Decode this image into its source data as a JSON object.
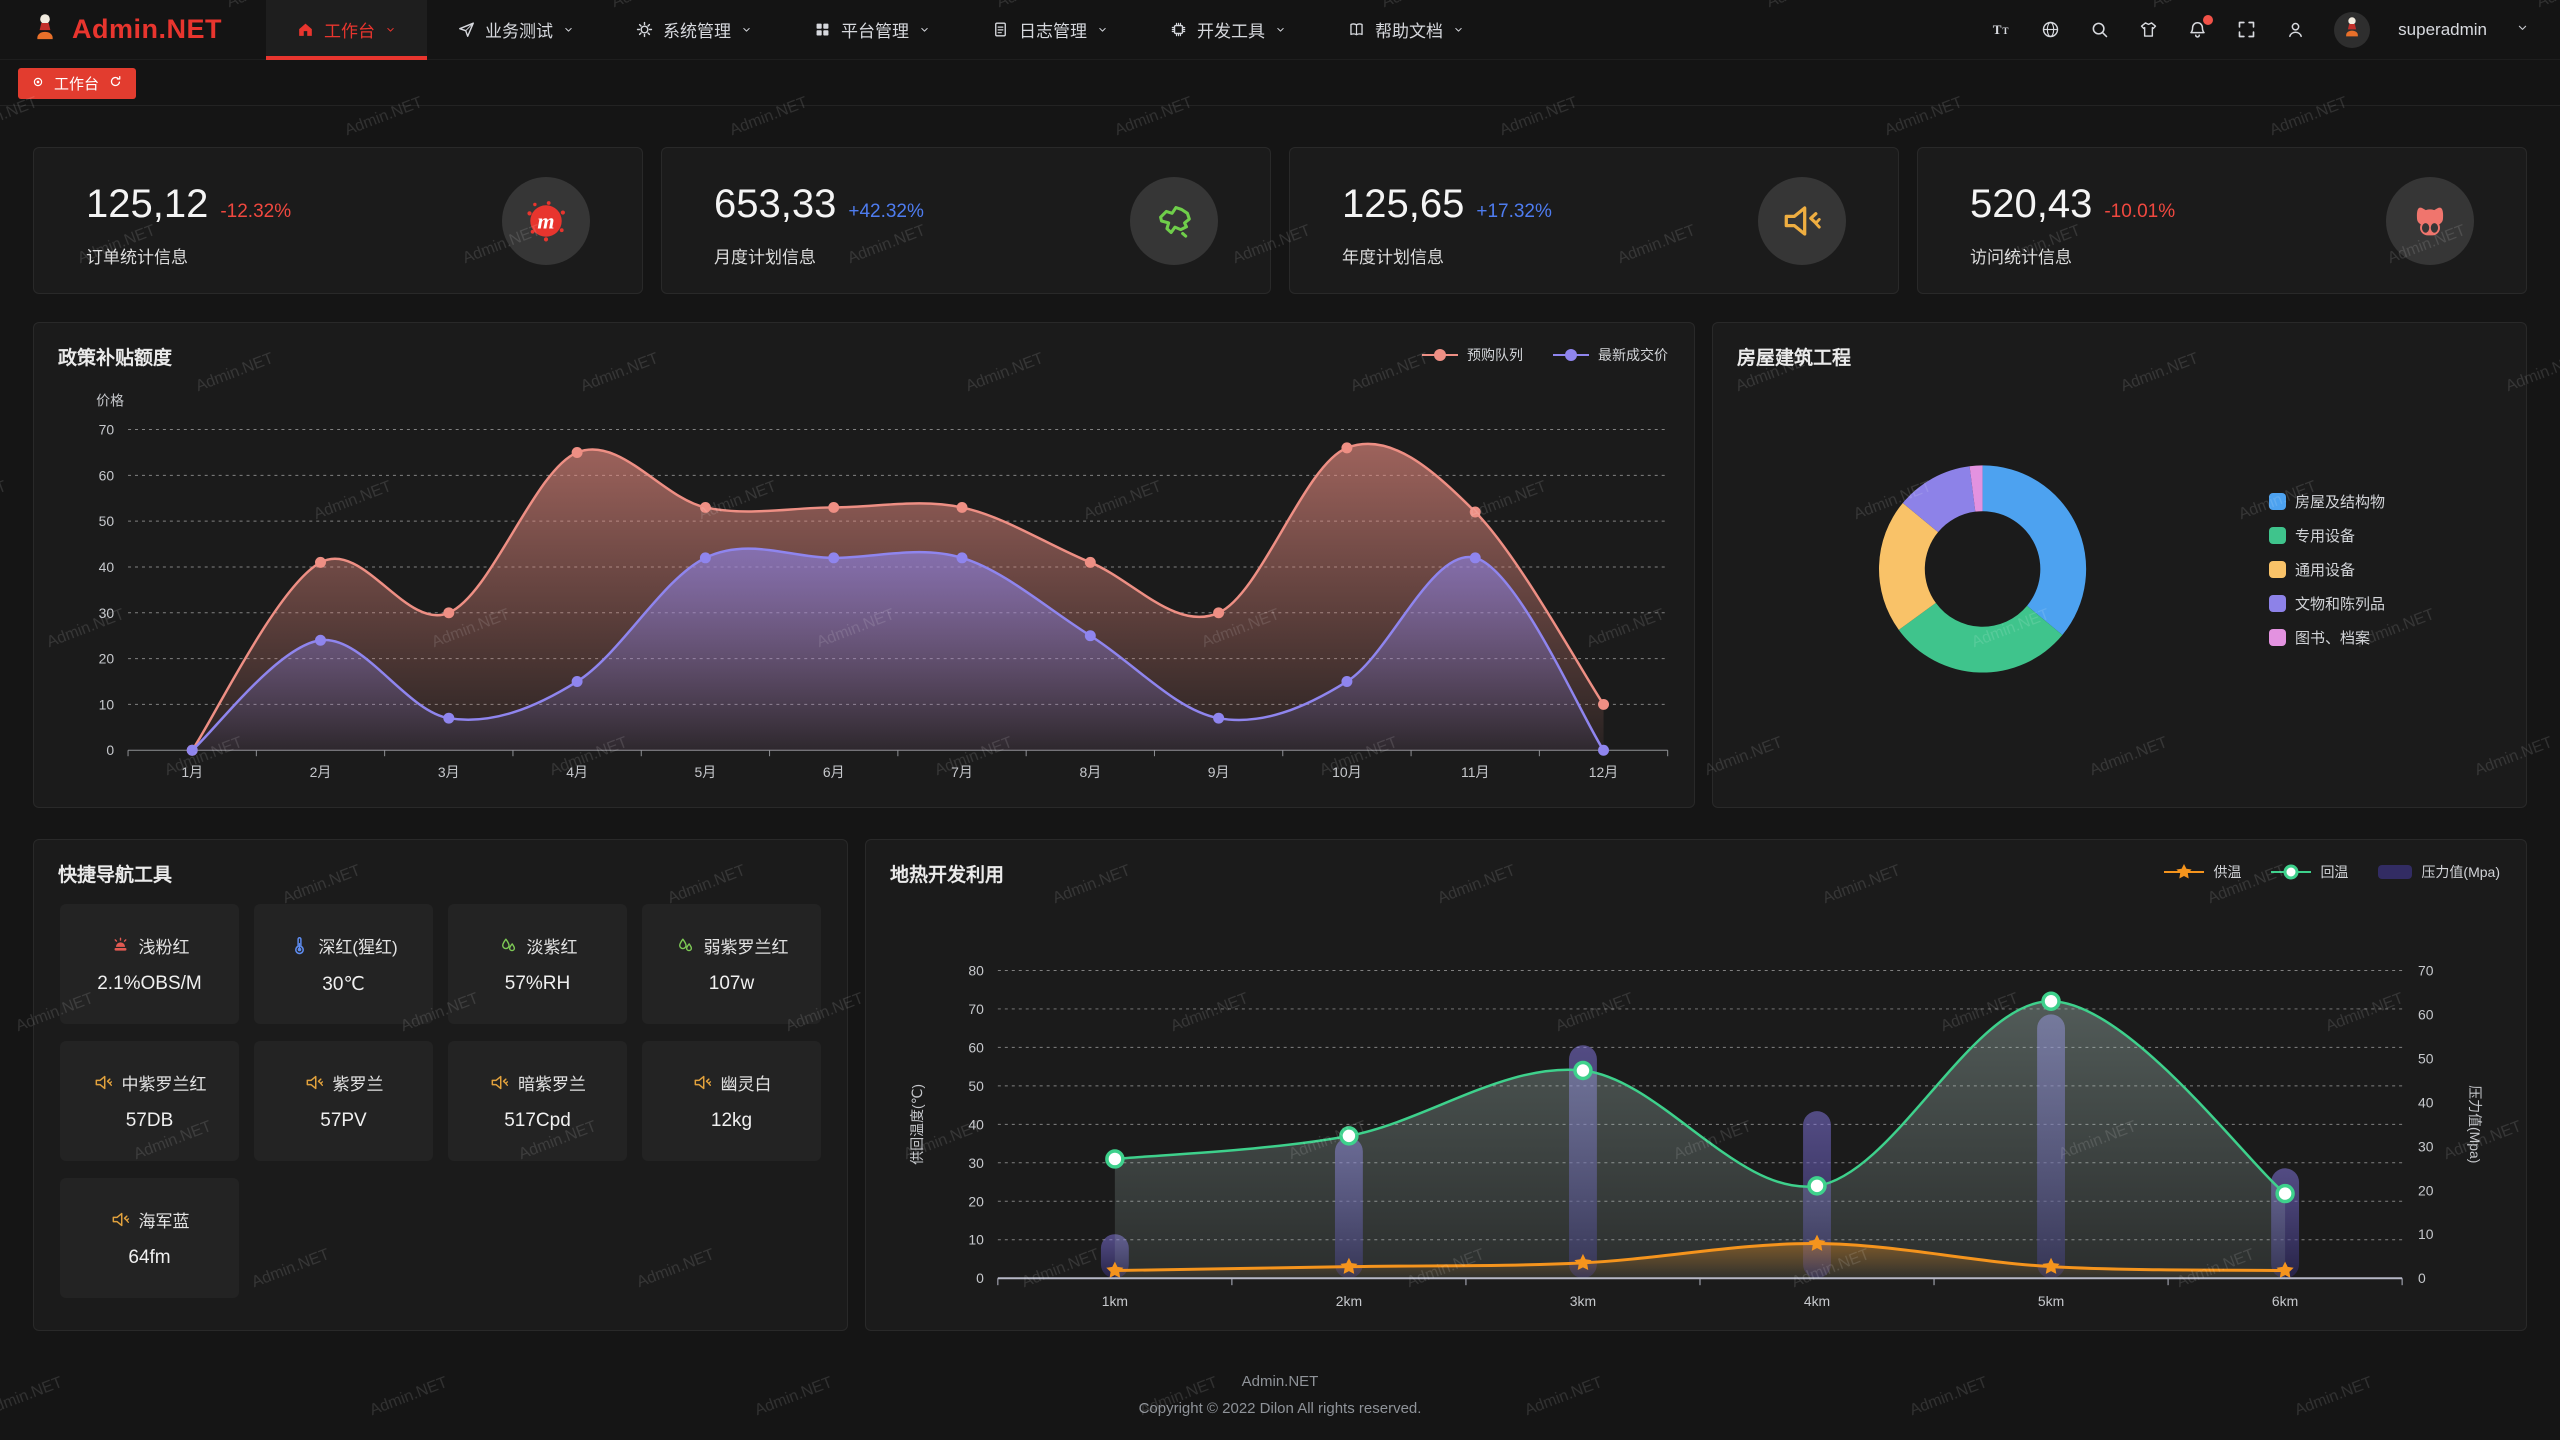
{
  "header": {
    "logo_text": "Admin.NET",
    "menu": [
      {
        "id": "workbench",
        "label": "工作台",
        "icon": "home",
        "active": true
      },
      {
        "id": "business-test",
        "label": "业务测试",
        "icon": "send",
        "active": false
      },
      {
        "id": "system-manage",
        "label": "系统管理",
        "icon": "gear",
        "active": false
      },
      {
        "id": "platform-manage",
        "label": "平台管理",
        "icon": "grid",
        "active": false
      },
      {
        "id": "log-manage",
        "label": "日志管理",
        "icon": "file",
        "active": false
      },
      {
        "id": "dev-tools",
        "label": "开发工具",
        "icon": "chip",
        "active": false
      },
      {
        "id": "help-docs",
        "label": "帮助文档",
        "icon": "book",
        "active": false
      }
    ],
    "toolbar": [
      {
        "id": "font-size",
        "icon": "font-size",
        "badge": false
      },
      {
        "id": "language",
        "icon": "language",
        "badge": false
      },
      {
        "id": "search",
        "icon": "search",
        "badge": false
      },
      {
        "id": "theme",
        "icon": "theme",
        "badge": false
      },
      {
        "id": "notifications",
        "icon": "bell",
        "badge": true
      },
      {
        "id": "fullscreen",
        "icon": "fullscreen",
        "badge": false
      },
      {
        "id": "profile",
        "icon": "user",
        "badge": false
      }
    ],
    "username": "superadmin"
  },
  "tabbar": {
    "active_tab": "工作台"
  },
  "cards": [
    {
      "value": "125,12",
      "delta": "-12.32%",
      "trend": "down",
      "label": "订单统计信息",
      "icon": "medium",
      "icon_color": "#e8352e"
    },
    {
      "value": "653,33",
      "delta": "+42.32%",
      "trend": "up",
      "label": "月度计划信息",
      "icon": "china-map",
      "icon_color": "#6fce4a"
    },
    {
      "value": "125,65",
      "delta": "+17.32%",
      "trend": "up",
      "label": "年度计划信息",
      "icon": "voice",
      "icon_color": "#efae41"
    },
    {
      "value": "520,43",
      "delta": "-10.01%",
      "trend": "down",
      "label": "访问统计信息",
      "icon": "octocat",
      "icon_color": "#f0756d"
    }
  ],
  "quick_nav": {
    "title": "快捷导航工具",
    "buttons": [
      {
        "name": "浅粉红",
        "value": "2.1%OBS/M",
        "icon": "alarm",
        "icon_color": "#e25a52"
      },
      {
        "name": "深红(猩红)",
        "value": "30℃",
        "icon": "thermometer",
        "icon_color": "#5e8cf0"
      },
      {
        "name": "淡紫红",
        "value": "57%RH",
        "icon": "humidity",
        "icon_color": "#7dc855"
      },
      {
        "name": "弱紫罗兰红",
        "value": "107w",
        "icon": "humidity",
        "icon_color": "#7dc855"
      },
      {
        "name": "中紫罗兰红",
        "value": "57DB",
        "icon": "voice",
        "icon_color": "#e2a23d"
      },
      {
        "name": "紫罗兰",
        "value": "57PV",
        "icon": "voice",
        "icon_color": "#e2a23d"
      },
      {
        "name": "暗紫罗兰",
        "value": "517Cpd",
        "icon": "voice",
        "icon_color": "#e2a23d"
      },
      {
        "name": "幽灵白",
        "value": "12kg",
        "icon": "voice",
        "icon_color": "#e2a23d"
      },
      {
        "name": "海军蓝",
        "value": "64fm",
        "icon": "voice",
        "icon_color": "#e2a23d"
      }
    ]
  },
  "chart_data": [
    {
      "id": "policy",
      "type": "area",
      "title": "政策补贴额度",
      "yname": "价格",
      "ylim": [
        0,
        70
      ],
      "yticks": [
        0,
        10,
        20,
        30,
        40,
        50,
        60,
        70
      ],
      "grid": "dashed",
      "legend_position": "top-right",
      "categories": [
        "1月",
        "2月",
        "3月",
        "4月",
        "5月",
        "6月",
        "7月",
        "8月",
        "9月",
        "10月",
        "11月",
        "12月"
      ],
      "series": [
        {
          "name": "预购队列",
          "color": "#ee8f84",
          "values": [
            0,
            41,
            30,
            65,
            53,
            53,
            53,
            41,
            30,
            66,
            52,
            10
          ]
        },
        {
          "name": "最新成交价",
          "color": "#8f85ee",
          "values": [
            0,
            24,
            7,
            15,
            42,
            42,
            42,
            25,
            7,
            15,
            42,
            0
          ]
        }
      ]
    },
    {
      "id": "building",
      "type": "pie",
      "title": "房屋建筑工程",
      "inner_radius_ratio": 0.56,
      "legend_position": "right",
      "items": [
        {
          "label": "房屋及结构物",
          "value": 36,
          "color": "#4da2f0"
        },
        {
          "label": "专用设备",
          "value": 29,
          "color": "#3fc48c"
        },
        {
          "label": "通用设备",
          "value": 21,
          "color": "#f9c268"
        },
        {
          "label": "文物和陈列品",
          "value": 12,
          "color": "#8d82e8"
        },
        {
          "label": "图书、档案",
          "value": 2,
          "color": "#e392e0"
        }
      ]
    },
    {
      "id": "geothermal",
      "type": "dual-axis",
      "title": "地热开发利用",
      "categories": [
        "1km",
        "2km",
        "3km",
        "4km",
        "5km",
        "6km"
      ],
      "left_axis": {
        "name": "供回温度(℃)",
        "lim": [
          0,
          80
        ],
        "ticks": [
          0,
          10,
          20,
          30,
          40,
          50,
          60,
          70,
          80
        ]
      },
      "right_axis": {
        "name": "压力值(Mpa)",
        "lim": [
          0,
          70
        ],
        "ticks": [
          0,
          10,
          20,
          30,
          40,
          50,
          60,
          70
        ]
      },
      "legend_position": "top-right",
      "series": [
        {
          "name": "供温",
          "kind": "line",
          "marker": "star",
          "axis": "left",
          "color": "#f5941d",
          "values": [
            2,
            3,
            4,
            9,
            3,
            2
          ]
        },
        {
          "name": "回温",
          "kind": "line",
          "marker": "circle",
          "axis": "left",
          "color": "#3ed18c",
          "values": [
            31,
            37,
            54,
            24,
            72,
            22
          ]
        },
        {
          "name": "压力值(Mpa)",
          "kind": "bar",
          "axis": "right",
          "color": "#6a5fc9",
          "swatch": "#322c63",
          "values": [
            10,
            32,
            53,
            38,
            60,
            25
          ]
        }
      ]
    }
  ],
  "footer": {
    "line1": "Admin.NET",
    "line2": "Copyright © 2022 Dilon All rights reserved."
  },
  "watermark": {
    "text": "Admin.NET"
  },
  "colors": {
    "accent": "#e8352e",
    "up": "#4e7cf0",
    "down": "#f0483f",
    "panel": "#1b1b1b",
    "background": "#151515",
    "badge": "#f25248"
  }
}
